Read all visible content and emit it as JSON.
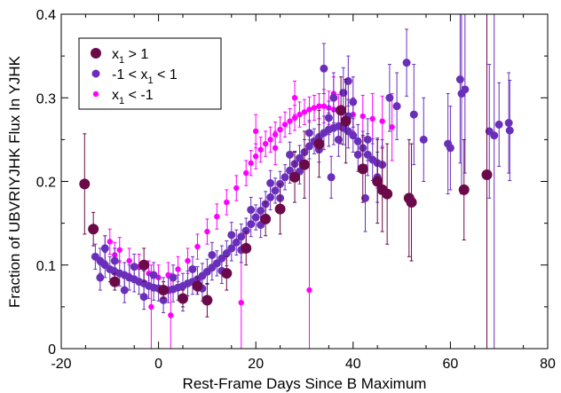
{
  "chart_data": {
    "type": "scatter",
    "xlabel": "Rest-Frame Days Since B Maximum",
    "ylabel": "Fraction of UBVRIYJHK Flux In YJHK",
    "xlim": [
      -20,
      80
    ],
    "ylim": [
      0,
      0.4
    ],
    "x_ticks": [
      -20,
      0,
      20,
      40,
      60,
      80
    ],
    "y_ticks": [
      0,
      0.1,
      0.2,
      0.3,
      0.4
    ],
    "grid": false,
    "legend_position": "top-left",
    "series": [
      {
        "name_main": "x",
        "name_sub": "1",
        "name_rest": " > 1",
        "color": "#6b0a48",
        "marker": "large",
        "points": [
          [
            -15.2,
            0.197,
            0.06
          ],
          [
            -13.4,
            0.143,
            0.02
          ],
          [
            -9.0,
            0.08,
            0.01
          ],
          [
            -3.0,
            0.1,
            0.02
          ],
          [
            1.0,
            0.07,
            0.01
          ],
          [
            5.0,
            0.06,
            0.01
          ],
          [
            8.0,
            0.075,
            0.01
          ],
          [
            10.0,
            0.058,
            0.02
          ],
          [
            14.0,
            0.09,
            0.02
          ],
          [
            18.0,
            0.12,
            0.02
          ],
          [
            22.0,
            0.155,
            0.02
          ],
          [
            25.0,
            0.167,
            0.03
          ],
          [
            28.0,
            0.205,
            0.03
          ],
          [
            30.0,
            0.22,
            0.04
          ],
          [
            33.0,
            0.245,
            0.04
          ],
          [
            37.5,
            0.285,
            0.04
          ],
          [
            38.5,
            0.272,
            0.05
          ],
          [
            42.0,
            0.215,
            0.04
          ],
          [
            45.0,
            0.2,
            0.05
          ],
          [
            46.0,
            0.19,
            0.05
          ],
          [
            47.0,
            0.185,
            0.06
          ],
          [
            51.5,
            0.18,
            0.07
          ],
          [
            52.0,
            0.175,
            0.07
          ],
          [
            62.8,
            0.19,
            0.06
          ],
          [
            67.5,
            0.208,
            0.25
          ]
        ]
      },
      {
        "name_main": "-1 < x",
        "name_sub": "1",
        "name_rest": " < 1",
        "color": "#6a2fba",
        "marker": "medium",
        "points": [
          [
            -13,
            0.11,
            0.015
          ],
          [
            -12,
            0.105,
            0.015
          ],
          [
            -11,
            0.1,
            0.015
          ],
          [
            -10,
            0.095,
            0.015
          ],
          [
            -9,
            0.092,
            0.015
          ],
          [
            -8,
            0.09,
            0.015
          ],
          [
            -7,
            0.088,
            0.015
          ],
          [
            -6,
            0.085,
            0.015
          ],
          [
            -5,
            0.083,
            0.015
          ],
          [
            -4,
            0.08,
            0.015
          ],
          [
            -3,
            0.078,
            0.015
          ],
          [
            -2,
            0.075,
            0.015
          ],
          [
            -1,
            0.073,
            0.015
          ],
          [
            0,
            0.072,
            0.015
          ],
          [
            1,
            0.07,
            0.015
          ],
          [
            2,
            0.07,
            0.015
          ],
          [
            3,
            0.071,
            0.015
          ],
          [
            4,
            0.073,
            0.015
          ],
          [
            5,
            0.075,
            0.015
          ],
          [
            6,
            0.078,
            0.015
          ],
          [
            7,
            0.08,
            0.015
          ],
          [
            8,
            0.083,
            0.015
          ],
          [
            9,
            0.087,
            0.015
          ],
          [
            10,
            0.092,
            0.015
          ],
          [
            11,
            0.097,
            0.015
          ],
          [
            12,
            0.102,
            0.015
          ],
          [
            13,
            0.108,
            0.015
          ],
          [
            14,
            0.114,
            0.015
          ],
          [
            15,
            0.12,
            0.015
          ],
          [
            16,
            0.127,
            0.015
          ],
          [
            17,
            0.134,
            0.015
          ],
          [
            18,
            0.141,
            0.015
          ],
          [
            19,
            0.149,
            0.015
          ],
          [
            20,
            0.157,
            0.015
          ],
          [
            21,
            0.165,
            0.015
          ],
          [
            22,
            0.173,
            0.015
          ],
          [
            23,
            0.181,
            0.015
          ],
          [
            24,
            0.189,
            0.015
          ],
          [
            25,
            0.197,
            0.015
          ],
          [
            26,
            0.205,
            0.015
          ],
          [
            27,
            0.213,
            0.015
          ],
          [
            28,
            0.221,
            0.015
          ],
          [
            29,
            0.228,
            0.015
          ],
          [
            30,
            0.235,
            0.015
          ],
          [
            31,
            0.242,
            0.015
          ],
          [
            32,
            0.248,
            0.015
          ],
          [
            33,
            0.253,
            0.015
          ],
          [
            34,
            0.258,
            0.02
          ],
          [
            35,
            0.262,
            0.02
          ],
          [
            36,
            0.264,
            0.02
          ],
          [
            37,
            0.266,
            0.02
          ],
          [
            38,
            0.264,
            0.02
          ],
          [
            39,
            0.26,
            0.02
          ],
          [
            40,
            0.255,
            0.02
          ],
          [
            41,
            0.248,
            0.02
          ],
          [
            42,
            0.24,
            0.02
          ],
          [
            43,
            0.232,
            0.025
          ],
          [
            44,
            0.226,
            0.025
          ],
          [
            45,
            0.222,
            0.03
          ],
          [
            46,
            0.22,
            0.03
          ],
          [
            -12,
            0.085,
            0.015
          ],
          [
            -11,
            0.12,
            0.015
          ],
          [
            -9,
            0.105,
            0.015
          ],
          [
            -7,
            0.07,
            0.015
          ],
          [
            -5,
            0.098,
            0.015
          ],
          [
            -3,
            0.062,
            0.015
          ],
          [
            -1,
            0.088,
            0.015
          ],
          [
            1,
            0.058,
            0.015
          ],
          [
            3,
            0.085,
            0.015
          ],
          [
            5,
            0.06,
            0.015
          ],
          [
            7,
            0.095,
            0.015
          ],
          [
            9,
            0.072,
            0.015
          ],
          [
            11,
            0.112,
            0.015
          ],
          [
            13,
            0.093,
            0.015
          ],
          [
            15,
            0.136,
            0.015
          ],
          [
            17,
            0.118,
            0.015
          ],
          [
            19,
            0.166,
            0.015
          ],
          [
            21,
            0.148,
            0.015
          ],
          [
            23,
            0.198,
            0.015
          ],
          [
            25,
            0.18,
            0.015
          ],
          [
            27,
            0.232,
            0.015
          ],
          [
            29,
            0.212,
            0.015
          ],
          [
            31,
            0.258,
            0.015
          ],
          [
            33,
            0.238,
            0.015
          ],
          [
            35,
            0.276,
            0.02
          ],
          [
            37,
            0.25,
            0.02
          ],
          [
            39,
            0.278,
            0.02
          ],
          [
            41,
            0.232,
            0.02
          ],
          [
            43,
            0.25,
            0.025
          ],
          [
            45,
            0.205,
            0.03
          ],
          [
            36,
            0.3,
            0.03
          ],
          [
            38,
            0.306,
            0.03
          ],
          [
            40,
            0.295,
            0.03
          ],
          [
            34,
            0.335,
            0.03
          ],
          [
            39,
            0.32,
            0.03
          ],
          [
            47.5,
            0.3,
            0.04
          ],
          [
            49,
            0.29,
            0.04
          ],
          [
            51,
            0.342,
            0.04
          ],
          [
            52.5,
            0.28,
            0.06
          ],
          [
            54.5,
            0.25,
            0.05
          ],
          [
            59.5,
            0.245,
            0.06
          ],
          [
            60,
            0.24,
            0.05
          ],
          [
            62,
            0.322,
            0.1
          ],
          [
            62.3,
            0.305,
            0.12
          ],
          [
            63,
            0.31,
            0.1
          ],
          [
            68,
            0.26,
            0.08
          ],
          [
            70,
            0.268,
            0.05
          ],
          [
            72,
            0.27,
            0.06
          ],
          [
            72.2,
            0.261,
            0.06
          ],
          [
            69,
            0.255,
            0.28
          ],
          [
            42.5,
            0.18,
            0.04
          ],
          [
            35.5,
            0.205,
            0.025
          ]
        ]
      },
      {
        "name_main": "x",
        "name_sub": "1",
        "name_rest": " < -1",
        "color": "#ff00ff",
        "marker": "small",
        "points": [
          [
            -11,
            0.12,
            0.015
          ],
          [
            -10,
            0.128,
            0.015
          ],
          [
            -9,
            0.112,
            0.015
          ],
          [
            -8,
            0.118,
            0.015
          ],
          [
            -6,
            0.105,
            0.015
          ],
          [
            -4,
            0.098,
            0.015
          ],
          [
            -2,
            0.09,
            0.015
          ],
          [
            0,
            0.085,
            0.015
          ],
          [
            2,
            0.088,
            0.015
          ],
          [
            4,
            0.095,
            0.015
          ],
          [
            6,
            0.105,
            0.015
          ],
          [
            8,
            0.122,
            0.015
          ],
          [
            10,
            0.14,
            0.015
          ],
          [
            12,
            0.158,
            0.015
          ],
          [
            14,
            0.175,
            0.015
          ],
          [
            16,
            0.192,
            0.015
          ],
          [
            18,
            0.21,
            0.015
          ],
          [
            19,
            0.222,
            0.015
          ],
          [
            20,
            0.23,
            0.015
          ],
          [
            21,
            0.238,
            0.015
          ],
          [
            22,
            0.245,
            0.015
          ],
          [
            23,
            0.25,
            0.015
          ],
          [
            24,
            0.256,
            0.015
          ],
          [
            25,
            0.262,
            0.015
          ],
          [
            26,
            0.268,
            0.015
          ],
          [
            27,
            0.272,
            0.015
          ],
          [
            28,
            0.276,
            0.015
          ],
          [
            29,
            0.28,
            0.015
          ],
          [
            30,
            0.283,
            0.015
          ],
          [
            31,
            0.286,
            0.015
          ],
          [
            32,
            0.288,
            0.015
          ],
          [
            33,
            0.29,
            0.015
          ],
          [
            34,
            0.29,
            0.02
          ],
          [
            35,
            0.288,
            0.02
          ],
          [
            36,
            0.286,
            0.02
          ],
          [
            37,
            0.284,
            0.02
          ],
          [
            40,
            0.28,
            0.02
          ],
          [
            42,
            0.278,
            0.025
          ],
          [
            44,
            0.275,
            0.03
          ],
          [
            46,
            0.272,
            0.03
          ],
          [
            48,
            0.265,
            0.04
          ],
          [
            -1.5,
            0.05,
            0.05
          ],
          [
            2.5,
            0.04,
            0.05
          ],
          [
            17,
            0.055,
            0.08
          ],
          [
            20,
            0.26,
            0.02
          ],
          [
            24,
            0.24,
            0.02
          ],
          [
            28,
            0.3,
            0.02
          ],
          [
            31,
            0.07,
            0.18
          ],
          [
            36,
            0.305,
            0.02
          ]
        ]
      }
    ]
  }
}
